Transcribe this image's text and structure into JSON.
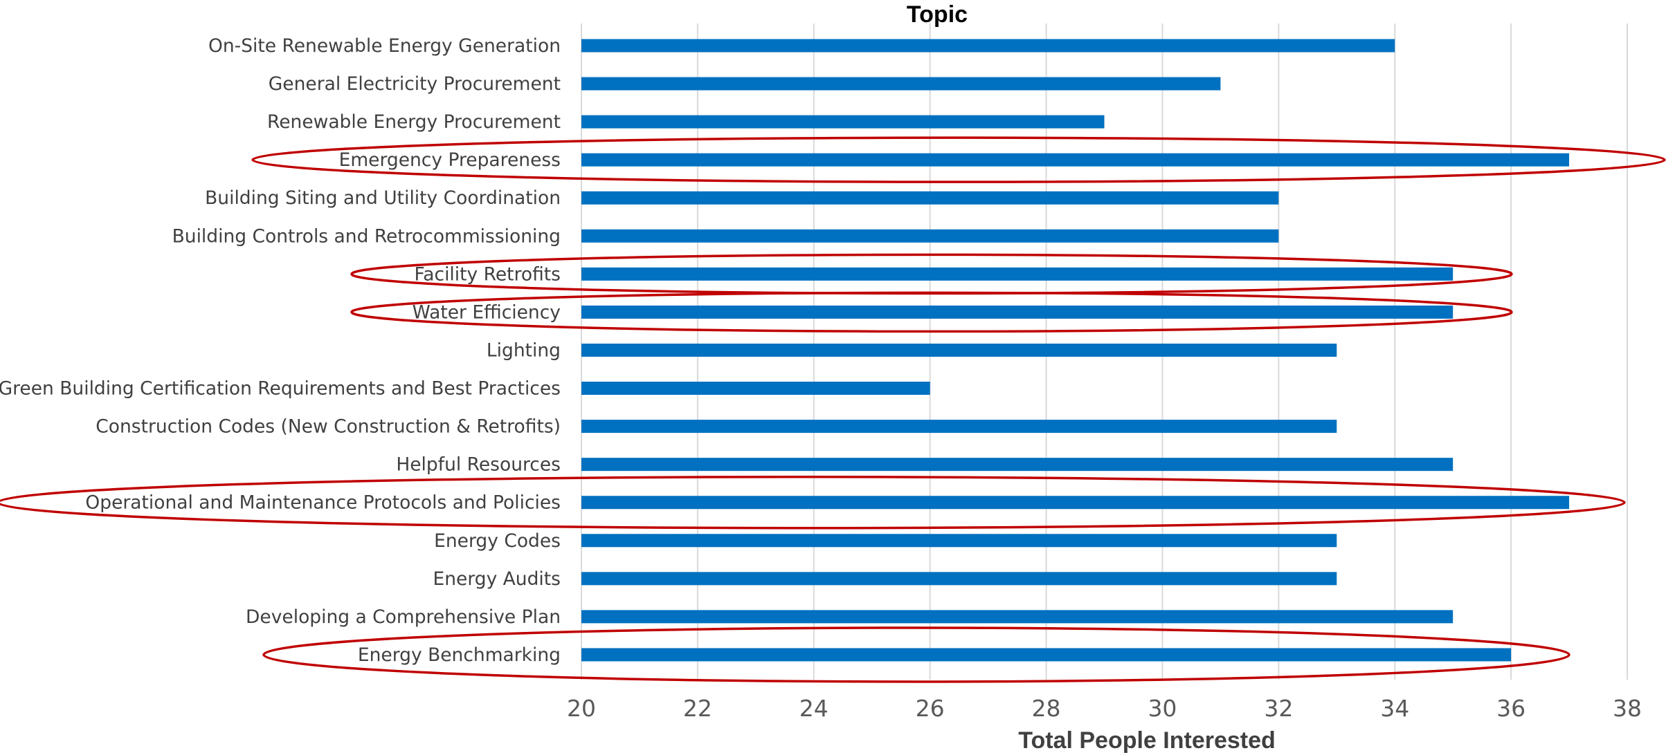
{
  "chart_data": {
    "type": "bar",
    "orientation": "horizontal",
    "title": "Topic",
    "xlabel": "Total People Interested",
    "ylabel": "",
    "xlim": [
      20,
      38
    ],
    "xticks": [
      "20",
      "22",
      "24",
      "26",
      "28",
      "30",
      "32",
      "34",
      "36",
      "38"
    ],
    "grid": true,
    "legend": "none",
    "bar_color": "#0070c0",
    "highlight_color": "#c00000",
    "categories": [
      "On-Site Renewable Energy Generation",
      "General Electricity Procurement",
      "Renewable Energy Procurement",
      "Emergency Prepareness",
      "Building Siting and Utility Coordination",
      "Building Controls and Retrocommissioning",
      "Facility Retrofits",
      "Water Efficiency",
      "Lighting",
      "Green Building Certification Requirements and Best Practices",
      "Construction Codes (New Construction & Retrofits)",
      "Helpful Resources",
      "Operational and Maintenance Protocols and Policies",
      "Energy Codes",
      "Energy Audits",
      "Developing a Comprehensive Plan",
      "Energy Benchmarking"
    ],
    "values": [
      34,
      31,
      29,
      37,
      32,
      32,
      35,
      35,
      33,
      26,
      33,
      35,
      37,
      33,
      33,
      35,
      36
    ],
    "highlighted": [
      "Emergency Prepareness",
      "Facility Retrofits",
      "Water Efficiency",
      "Operational and Maintenance Protocols and Policies",
      "Energy Benchmarking"
    ]
  }
}
